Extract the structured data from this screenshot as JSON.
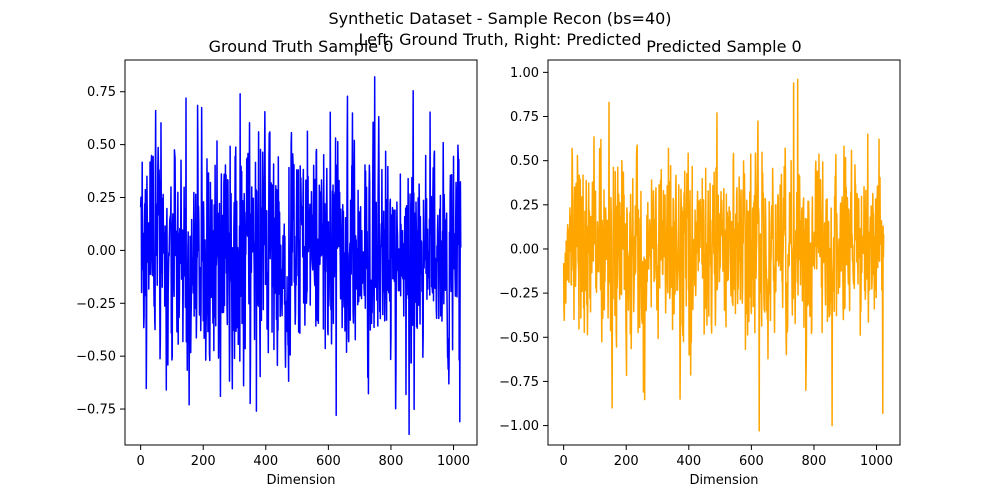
{
  "figure": {
    "suptitle_line1": "Synthetic Dataset - Sample Recon (bs=40)",
    "suptitle_line2": "Left: Ground Truth, Right: Predicted"
  },
  "chart_data": [
    {
      "type": "line",
      "title": "Ground Truth Sample 0",
      "xlabel": "Dimension",
      "ylabel": "",
      "xlim": [
        -50,
        1075
      ],
      "ylim": [
        -0.92,
        0.9
      ],
      "xticks": [
        0,
        200,
        400,
        600,
        800,
        1000
      ],
      "yticks": [
        -0.75,
        -0.5,
        -0.25,
        0.0,
        0.25,
        0.5,
        0.75
      ],
      "ytick_labels": [
        "−0.75",
        "−0.50",
        "−0.25",
        "0.00",
        "0.25",
        "0.50",
        "0.75"
      ],
      "grid": false,
      "series": [
        {
          "color": "#0000ff",
          "n_points": 1024,
          "x_range": [
            0,
            1023
          ],
          "sampled_extrema": [
            {
              "x": 82,
              "y": -0.66
            },
            {
              "x": 145,
              "y": 0.72
            },
            {
              "x": 155,
              "y": -0.73
            },
            {
              "x": 255,
              "y": -0.69
            },
            {
              "x": 318,
              "y": 0.74
            },
            {
              "x": 370,
              "y": -0.76
            },
            {
              "x": 625,
              "y": -0.78
            },
            {
              "x": 748,
              "y": 0.82
            },
            {
              "x": 858,
              "y": -0.87
            },
            {
              "x": 1020,
              "y": -0.81
            }
          ]
        }
      ]
    },
    {
      "type": "line",
      "title": "Predicted Sample 0",
      "xlabel": "Dimension",
      "ylabel": "",
      "xlim": [
        -50,
        1075
      ],
      "ylim": [
        -1.11,
        1.07
      ],
      "xticks": [
        0,
        200,
        400,
        600,
        800,
        1000
      ],
      "yticks": [
        -1.0,
        -0.75,
        -0.5,
        -0.25,
        0.0,
        0.25,
        0.5,
        0.75,
        1.0
      ],
      "ytick_labels": [
        "−1.00",
        "−0.75",
        "−0.50",
        "−0.25",
        "0.00",
        "0.25",
        "0.50",
        "0.75",
        "1.00"
      ],
      "grid": false,
      "series": [
        {
          "color": "#ffa500",
          "n_points": 1024,
          "x_range": [
            0,
            1023
          ],
          "sampled_extrema": [
            {
              "x": 145,
              "y": 0.83
            },
            {
              "x": 155,
              "y": -0.9
            },
            {
              "x": 255,
              "y": -0.81
            },
            {
              "x": 372,
              "y": -0.85
            },
            {
              "x": 625,
              "y": -1.03
            },
            {
              "x": 735,
              "y": 0.94
            },
            {
              "x": 748,
              "y": 0.96
            },
            {
              "x": 858,
              "y": -1.0
            },
            {
              "x": 1020,
              "y": -0.93
            }
          ]
        }
      ]
    }
  ]
}
